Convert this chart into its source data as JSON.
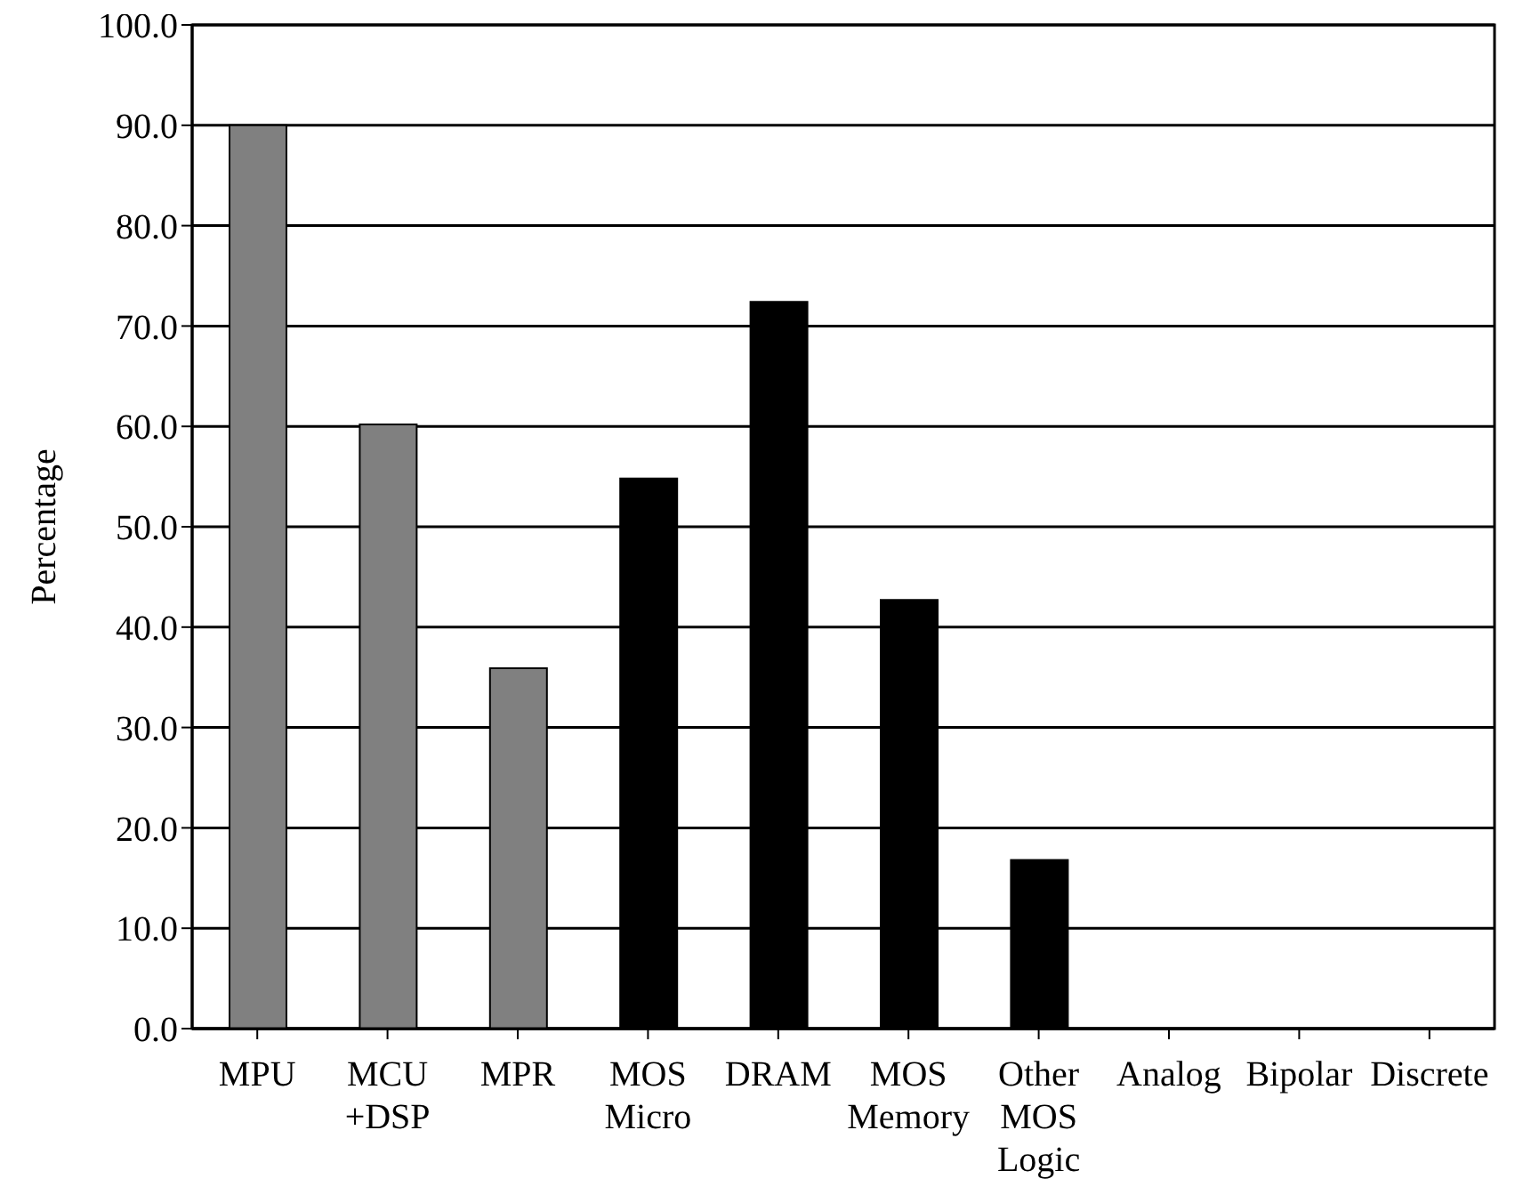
{
  "chart_data": {
    "type": "bar",
    "ylabel": "Percentage",
    "categories": [
      "MPU",
      "MCU +DSP",
      "MPR",
      "MOS Micro",
      "DRAM",
      "MOS Memory",
      "Other MOS Logic",
      "Analog",
      "Bipolar",
      "Discrete"
    ],
    "values": [
      90,
      60.2,
      35.9,
      54.8,
      72.4,
      42.7,
      16.8,
      0,
      0,
      0
    ],
    "colors": [
      "#808080",
      "#808080",
      "#808080",
      "#000000",
      "#000000",
      "#000000",
      "#000000",
      "#000000",
      "#000000",
      "#000000"
    ],
    "ylim": [
      0,
      100
    ],
    "yticks": [
      {
        "value": 0,
        "label": "0.0"
      },
      {
        "value": 10,
        "label": "10.0"
      },
      {
        "value": 20,
        "label": "20.0"
      },
      {
        "value": 30,
        "label": "30.0"
      },
      {
        "value": 40,
        "label": "40.0"
      },
      {
        "value": 50,
        "label": "50.0"
      },
      {
        "value": 60,
        "label": "60.0"
      },
      {
        "value": 70,
        "label": "70.0"
      },
      {
        "value": 80,
        "label": "80.0"
      },
      {
        "value": 90,
        "label": "90.0"
      },
      {
        "value": 100,
        "label": "100.0"
      }
    ],
    "grid": "y",
    "legend": false
  }
}
